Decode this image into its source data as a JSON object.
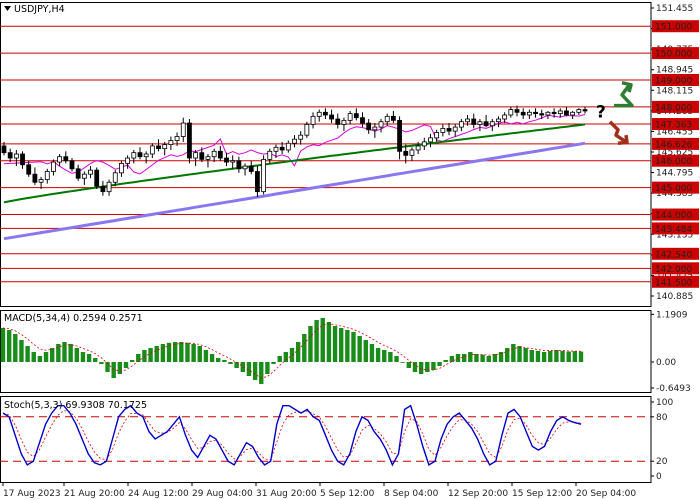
{
  "chart_data": [
    {
      "type": "candlestick",
      "title": "USDJPY,H4",
      "x_labels": [
        "17 Aug 2023",
        "21 Aug 20:00",
        "24 Aug 12:00",
        "29 Aug 04:00",
        "31 Aug 20:00",
        "5 Sep 12:00",
        "8 Sep 04:00",
        "12 Sep 20:00",
        "15 Sep 12:00",
        "20 Sep 04:00"
      ],
      "y_ticks": [
        "151.455",
        "150.625",
        "149.775",
        "148.945",
        "148.115",
        "147.285",
        "146.455",
        "145.625",
        "144.795",
        "144.385",
        "143.965",
        "143.135",
        "142.305",
        "141.475",
        "140.885"
      ],
      "ylim": [
        140.6,
        151.9
      ],
      "grid": false,
      "candles": [
        [
          146.55,
          146.7,
          146.2,
          146.3
        ],
        [
          146.3,
          146.45,
          145.95,
          146.1
        ],
        [
          146.1,
          146.4,
          145.8,
          146.25
        ],
        [
          146.25,
          146.35,
          145.7,
          145.85
        ],
        [
          145.85,
          146.0,
          145.4,
          145.5
        ],
        [
          145.5,
          145.75,
          145.1,
          145.2
        ],
        [
          145.2,
          145.4,
          144.95,
          145.3
        ],
        [
          145.3,
          145.7,
          145.15,
          145.6
        ],
        [
          145.6,
          146.05,
          145.45,
          145.95
        ],
        [
          145.95,
          146.25,
          145.8,
          146.15
        ],
        [
          146.15,
          146.35,
          145.9,
          146.0
        ],
        [
          146.0,
          146.1,
          145.6,
          145.7
        ],
        [
          145.7,
          145.85,
          145.25,
          145.35
        ],
        [
          145.35,
          145.6,
          145.1,
          145.5
        ],
        [
          145.5,
          145.8,
          145.35,
          145.65
        ],
        [
          145.65,
          145.75,
          144.95,
          145.05
        ],
        [
          145.05,
          145.25,
          144.7,
          144.85
        ],
        [
          144.85,
          145.3,
          144.7,
          145.2
        ],
        [
          145.2,
          145.65,
          145.05,
          145.55
        ],
        [
          145.55,
          146.0,
          145.4,
          145.9
        ],
        [
          145.9,
          146.2,
          145.7,
          146.1
        ],
        [
          146.1,
          146.4,
          145.9,
          146.3
        ],
        [
          146.3,
          146.5,
          146.05,
          146.15
        ],
        [
          146.15,
          146.35,
          145.9,
          146.25
        ],
        [
          146.25,
          146.65,
          146.1,
          146.55
        ],
        [
          146.55,
          146.8,
          146.35,
          146.45
        ],
        [
          146.45,
          146.7,
          146.2,
          146.6
        ],
        [
          146.6,
          146.9,
          146.4,
          146.75
        ],
        [
          146.75,
          147.05,
          146.55,
          146.9
        ],
        [
          146.9,
          147.6,
          146.7,
          147.4
        ],
        [
          147.4,
          147.55,
          145.9,
          146.1
        ],
        [
          146.1,
          146.4,
          145.8,
          146.3
        ],
        [
          146.3,
          146.5,
          145.95,
          146.05
        ],
        [
          146.05,
          146.25,
          145.75,
          146.15
        ],
        [
          146.15,
          146.45,
          145.95,
          146.35
        ],
        [
          146.35,
          146.55,
          146.0,
          146.1
        ],
        [
          146.1,
          146.3,
          145.8,
          145.95
        ],
        [
          145.95,
          146.2,
          145.7,
          146.0
        ],
        [
          146.0,
          146.15,
          145.55,
          145.7
        ],
        [
          145.7,
          145.9,
          145.45,
          145.8
        ],
        [
          145.8,
          146.0,
          145.5,
          145.6
        ],
        [
          145.6,
          145.8,
          144.65,
          144.85
        ],
        [
          144.85,
          146.2,
          144.75,
          146.05
        ],
        [
          146.05,
          146.45,
          145.9,
          146.35
        ],
        [
          146.35,
          146.6,
          146.1,
          146.5
        ],
        [
          146.5,
          146.7,
          146.25,
          146.4
        ],
        [
          146.4,
          146.75,
          146.3,
          146.65
        ],
        [
          146.65,
          146.95,
          146.5,
          146.8
        ],
        [
          146.8,
          147.1,
          146.6,
          146.95
        ],
        [
          146.95,
          147.45,
          146.85,
          147.35
        ],
        [
          147.35,
          147.8,
          147.2,
          147.65
        ],
        [
          147.65,
          147.9,
          147.45,
          147.8
        ],
        [
          147.8,
          147.95,
          147.55,
          147.7
        ],
        [
          147.7,
          147.9,
          147.4,
          147.55
        ],
        [
          147.55,
          147.75,
          147.2,
          147.35
        ],
        [
          147.35,
          147.6,
          147.1,
          147.5
        ],
        [
          147.5,
          147.85,
          147.35,
          147.75
        ],
        [
          147.75,
          147.95,
          147.5,
          147.6
        ],
        [
          147.6,
          147.8,
          147.25,
          147.4
        ],
        [
          147.4,
          147.55,
          147.0,
          147.15
        ],
        [
          147.15,
          147.4,
          146.85,
          147.25
        ],
        [
          147.25,
          147.55,
          147.05,
          147.45
        ],
        [
          147.45,
          147.75,
          147.3,
          147.65
        ],
        [
          147.65,
          147.85,
          147.4,
          147.5
        ],
        [
          147.5,
          147.65,
          146.05,
          146.35
        ],
        [
          146.35,
          146.6,
          145.9,
          146.2
        ],
        [
          146.2,
          146.5,
          146.0,
          146.4
        ],
        [
          146.4,
          146.7,
          146.25,
          146.55
        ],
        [
          146.55,
          146.85,
          146.4,
          146.7
        ],
        [
          146.7,
          147.0,
          146.5,
          146.85
        ],
        [
          146.85,
          147.15,
          146.7,
          147.05
        ],
        [
          147.05,
          147.35,
          146.9,
          147.2
        ],
        [
          147.2,
          147.4,
          146.95,
          147.1
        ],
        [
          147.1,
          147.35,
          146.9,
          147.25
        ],
        [
          147.25,
          147.55,
          147.1,
          147.45
        ],
        [
          147.45,
          147.7,
          147.3,
          147.55
        ],
        [
          147.55,
          147.75,
          147.2,
          147.35
        ],
        [
          147.35,
          147.55,
          147.1,
          147.45
        ],
        [
          147.45,
          147.7,
          147.25,
          147.3
        ],
        [
          147.3,
          147.55,
          147.1,
          147.45
        ],
        [
          147.45,
          147.65,
          147.25,
          147.55
        ],
        [
          147.55,
          147.8,
          147.4,
          147.7
        ],
        [
          147.7,
          148.0,
          147.6,
          147.9
        ],
        [
          147.9,
          148.05,
          147.65,
          147.8
        ],
        [
          147.8,
          147.95,
          147.55,
          147.7
        ],
        [
          147.7,
          147.9,
          147.55,
          147.8
        ],
        [
          147.8,
          147.95,
          147.6,
          147.75
        ],
        [
          147.75,
          147.9,
          147.55,
          147.7
        ],
        [
          147.7,
          147.85,
          147.55,
          147.8
        ],
        [
          147.8,
          147.95,
          147.6,
          147.75
        ],
        [
          147.75,
          147.95,
          147.6,
          147.85
        ],
        [
          147.85,
          148.0,
          147.65,
          147.7
        ],
        [
          147.7,
          147.85,
          147.55,
          147.8
        ],
        [
          147.8,
          147.95,
          147.7,
          147.9
        ],
        [
          147.9,
          148.0,
          147.75,
          147.85
        ]
      ],
      "moving_averages": [
        {
          "color": "#dd00dd",
          "start": 145.55,
          "end": 147.65,
          "shape": "fast"
        },
        {
          "color": "#007700",
          "start": 144.45,
          "end": 147.35,
          "shape": "mid"
        },
        {
          "color": "#8877ee",
          "start": 143.1,
          "end": 146.65,
          "shape": "slow"
        }
      ],
      "levels": [
        {
          "label": "151.000",
          "value": 151.0
        },
        {
          "label": "150.000",
          "value": 150.0
        },
        {
          "label": "149.000",
          "value": 149.0
        },
        {
          "label": "148.000",
          "value": 148.0
        },
        {
          "label": "147.363",
          "value": 147.363
        },
        {
          "label": "146.626",
          "value": 146.626
        },
        {
          "label": "146.000",
          "value": 146.0
        },
        {
          "label": "145.000",
          "value": 145.0
        },
        {
          "label": "144.000",
          "value": 144.0
        },
        {
          "label": "143.484",
          "value": 143.484
        },
        {
          "label": "142.540",
          "value": 142.54
        },
        {
          "label": "142.000",
          "value": 142.0
        },
        {
          "label": "141.500",
          "value": 141.5
        }
      ],
      "annotations": {
        "question_mark": "?",
        "arrow_up_color": "#2e7d32",
        "arrow_down_color": "#a0301c"
      },
      "level_color": "#cc0000"
    },
    {
      "type": "bar",
      "title": "MACD(5,34,4) 0.2594 0.2571",
      "y_ticks": [
        "1.1909",
        "0.00",
        "-0.6493"
      ],
      "ylim": [
        -0.75,
        1.3
      ],
      "bar_color": "#1a8c1a",
      "signal_color": "#dd0000",
      "values": [
        0.85,
        0.8,
        0.7,
        0.55,
        0.4,
        0.25,
        0.15,
        0.25,
        0.35,
        0.45,
        0.5,
        0.45,
        0.35,
        0.25,
        0.2,
        0.1,
        -0.05,
        -0.25,
        -0.4,
        -0.3,
        -0.15,
        0.05,
        0.2,
        0.3,
        0.35,
        0.4,
        0.45,
        0.48,
        0.5,
        0.5,
        0.48,
        0.45,
        0.4,
        0.3,
        0.2,
        0.1,
        0.05,
        -0.05,
        -0.15,
        -0.25,
        -0.35,
        -0.45,
        -0.55,
        -0.3,
        -0.05,
        0.15,
        0.25,
        0.35,
        0.5,
        0.7,
        0.9,
        1.05,
        1.1,
        1.0,
        0.9,
        0.85,
        0.8,
        0.75,
        0.65,
        0.55,
        0.45,
        0.35,
        0.3,
        0.25,
        0.15,
        0.0,
        -0.15,
        -0.25,
        -0.3,
        -0.25,
        -0.2,
        -0.1,
        0.05,
        0.15,
        0.2,
        0.2,
        0.25,
        0.2,
        0.18,
        0.15,
        0.2,
        0.25,
        0.35,
        0.45,
        0.4,
        0.35,
        0.3,
        0.28,
        0.25,
        0.28,
        0.3,
        0.28,
        0.26,
        0.27,
        0.26
      ]
    },
    {
      "type": "line",
      "title": "Stoch(5,3,3) 69.9308 70.1725",
      "y_ticks": [
        "100",
        "80",
        "20",
        "0"
      ],
      "ylim": [
        0,
        100
      ],
      "levels": [
        80,
        20
      ],
      "k_color": "#0000cc",
      "d_color": "#dd0000",
      "values": [
        85,
        80,
        55,
        30,
        15,
        20,
        45,
        70,
        85,
        95,
        95,
        85,
        70,
        50,
        30,
        18,
        15,
        20,
        50,
        80,
        90,
        95,
        85,
        80,
        60,
        50,
        55,
        60,
        70,
        80,
        55,
        35,
        25,
        40,
        55,
        50,
        35,
        20,
        15,
        30,
        45,
        40,
        25,
        15,
        20,
        70,
        95,
        95,
        90,
        85,
        90,
        80,
        75,
        55,
        35,
        20,
        15,
        30,
        60,
        80,
        75,
        60,
        50,
        35,
        15,
        30,
        90,
        95,
        70,
        40,
        15,
        20,
        50,
        70,
        80,
        85,
        75,
        65,
        50,
        30,
        15,
        20,
        55,
        85,
        90,
        80,
        60,
        40,
        35,
        40,
        60,
        75,
        80,
        75,
        72,
        70
      ]
    }
  ]
}
